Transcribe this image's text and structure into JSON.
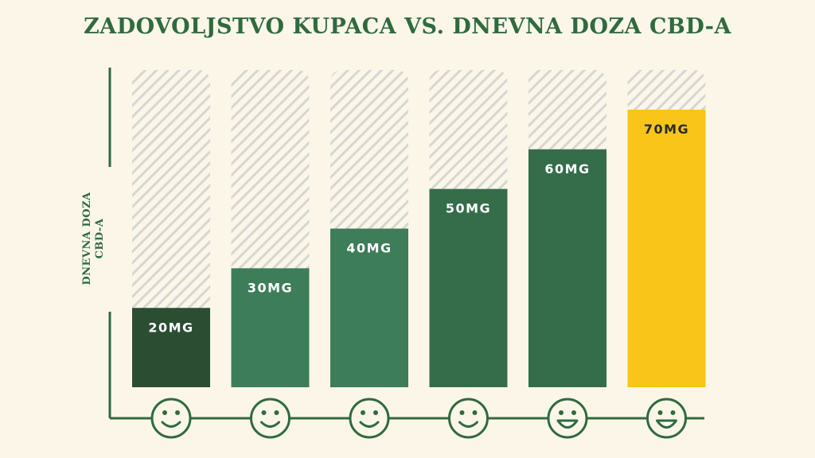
{
  "title": "ZADOVOLJSTVO KUPACA VS. DNEVNA DOZA CBD-A",
  "ylabel_line1": "DNEVNA DOZA",
  "ylabel_line2": "CBD-A",
  "colors": {
    "background": "#fcf6e9",
    "title": "#2f6b3f",
    "axis": "#2f6b3f",
    "hatch": "#d6d6d2",
    "bar_label_light": "#ffffff",
    "bar_label_dark": "#2b2b2b"
  },
  "chart_data": {
    "type": "bar",
    "title": "ZADOVOLJSTVO KUPACA VS. DNEVNA DOZA CBD-A",
    "ylabel": "DNEVNA DOZA CBD-A",
    "xlabel": "",
    "ylim": [
      0,
      80
    ],
    "grid": false,
    "legend": "none",
    "categories": [
      "smiley-1",
      "smiley-2",
      "smiley-3",
      "smiley-4",
      "smiley-5",
      "smiley-6"
    ],
    "values": [
      20,
      30,
      40,
      50,
      60,
      70
    ],
    "value_labels": [
      "20MG",
      "30MG",
      "40MG",
      "50MG",
      "60MG",
      "70MG"
    ],
    "bar_colors": [
      "#2b4e33",
      "#3e7d5a",
      "#3e7d5a",
      "#356d4a",
      "#356d4a",
      "#f8c518"
    ],
    "label_colors": [
      "#ffffff",
      "#ffffff",
      "#ffffff",
      "#ffffff",
      "#ffffff",
      "#2b2b2b"
    ],
    "x_icons": [
      "smile-icon",
      "smile-icon",
      "smile-icon",
      "smile-icon",
      "grin-icon",
      "grin-icon"
    ]
  }
}
